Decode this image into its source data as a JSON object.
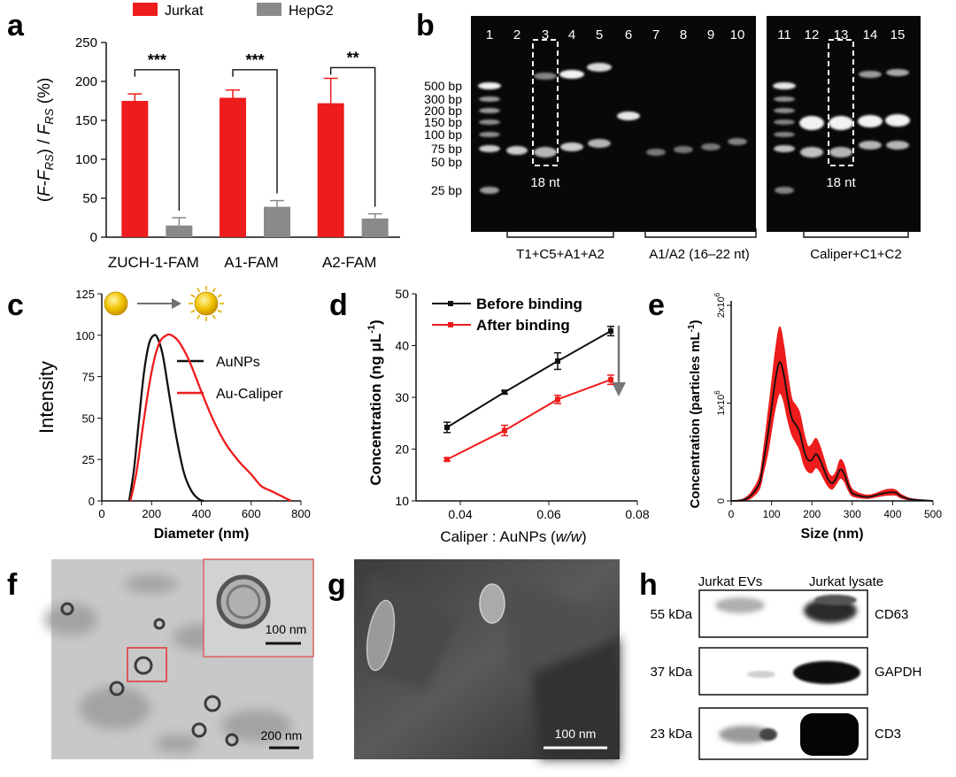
{
  "panels": {
    "a": "a",
    "b": "b",
    "c": "c",
    "d": "d",
    "e": "e",
    "f": "f",
    "g": "g",
    "h": "h"
  },
  "colors": {
    "red": "#ee1c1c",
    "gray": "#8a8a8a",
    "black": "#111111"
  },
  "chart_data": [
    {
      "id": "a",
      "type": "bar",
      "title": "",
      "ylabel_parts": [
        "(",
        "F",
        "-",
        "F",
        "RS",
        ") / ",
        "F",
        "RS",
        " (%)"
      ],
      "ylim": [
        0,
        250
      ],
      "yticks": [
        0,
        50,
        100,
        150,
        200,
        250
      ],
      "categories": [
        "ZUCH-1-FAM",
        "A1-FAM",
        "A2-FAM"
      ],
      "series": [
        {
          "name": "Jurkat",
          "color": "#ee1c1c",
          "values": [
            175,
            179,
            172
          ],
          "errors": [
            9,
            10,
            32
          ]
        },
        {
          "name": "HepG2",
          "color": "#8a8a8a",
          "values": [
            15,
            39,
            24
          ],
          "errors": [
            10,
            8,
            6
          ]
        }
      ],
      "significance": [
        "***",
        "***",
        "**"
      ]
    },
    {
      "id": "c",
      "type": "line",
      "xlabel": "Diameter (nm)",
      "ylabel": "Intensity",
      "xlim": [
        0,
        800
      ],
      "ylim": [
        0,
        125
      ],
      "xticks": [
        0,
        200,
        400,
        600,
        800
      ],
      "yticks": [
        0,
        25,
        50,
        75,
        100,
        125
      ],
      "series": [
        {
          "name": "AuNPs",
          "color": "#111111",
          "x": [
            110,
            130,
            150,
            170,
            190,
            210,
            225,
            245,
            270,
            300,
            330,
            360,
            390,
            410
          ],
          "y": [
            0,
            20,
            50,
            78,
            95,
            100,
            98,
            88,
            65,
            38,
            17,
            6,
            1,
            0
          ]
        },
        {
          "name": "Au-Caliper",
          "color": "#ee1c1c",
          "x": [
            115,
            140,
            170,
            200,
            230,
            260,
            280,
            310,
            350,
            400,
            450,
            500,
            550,
            600,
            640,
            680,
            720,
            760
          ],
          "y": [
            0,
            18,
            50,
            78,
            95,
            100,
            100,
            96,
            85,
            66,
            48,
            34,
            24,
            16,
            9,
            6,
            3,
            0
          ]
        }
      ]
    },
    {
      "id": "d",
      "type": "line",
      "xlabel_parts": [
        "Caliper : AuNPs (",
        "w/w",
        ")"
      ],
      "ylabel_parts": [
        "Concentration (ng ",
        "μL",
        "-1",
        ")"
      ],
      "xlim": [
        0.03,
        0.08
      ],
      "ylim": [
        10,
        50
      ],
      "xticks": [
        0.04,
        0.06,
        0.08
      ],
      "xtick_labels": [
        "0.04",
        "0.06",
        "0.08"
      ],
      "yticks": [
        10,
        20,
        30,
        40,
        50
      ],
      "x": [
        0.037,
        0.05,
        0.062,
        0.074
      ],
      "series": [
        {
          "name": "Before binding",
          "color": "#111111",
          "y": [
            24.2,
            31,
            37,
            42.8
          ],
          "errors": [
            1,
            0.3,
            1.6,
            0.9
          ]
        },
        {
          "name": "After binding",
          "color": "#ee1c1c",
          "y": [
            18,
            23.6,
            29.6,
            33.4
          ],
          "errors": [
            0.3,
            1,
            0.8,
            0.9
          ]
        }
      ]
    },
    {
      "id": "e",
      "type": "area",
      "xlabel": "Size (nm)",
      "ylabel_parts": [
        "Concentration (particles mL",
        "-1",
        ")"
      ],
      "xlim": [
        0,
        500
      ],
      "ylim": [
        0,
        2000000
      ],
      "xticks": [
        0,
        100,
        200,
        300,
        400,
        500
      ],
      "ytick_labels": [
        {
          "value": 0,
          "label": "0",
          "exp": ""
        },
        {
          "value": 1000000,
          "label": "1x10",
          "exp": "6"
        },
        {
          "value": 2000000,
          "label": "2x10",
          "exp": "6"
        }
      ],
      "x": [
        0,
        30,
        50,
        70,
        80,
        90,
        100,
        110,
        120,
        130,
        140,
        150,
        160,
        170,
        180,
        190,
        200,
        210,
        220,
        230,
        240,
        250,
        260,
        270,
        280,
        290,
        300,
        320,
        340,
        360,
        380,
        400,
        410,
        420,
        440,
        460,
        480,
        500
      ],
      "mean": [
        0,
        10000,
        60000,
        180000,
        400000,
        650000,
        950000,
        1250000,
        1420000,
        1300000,
        1050000,
        850000,
        780000,
        700000,
        520000,
        420000,
        420000,
        480000,
        420000,
        320000,
        220000,
        180000,
        230000,
        320000,
        280000,
        160000,
        80000,
        50000,
        40000,
        60000,
        80000,
        90000,
        80000,
        50000,
        20000,
        10000,
        5000,
        0
      ],
      "upper": [
        0,
        20000,
        90000,
        250000,
        520000,
        850000,
        1200000,
        1550000,
        1780000,
        1600000,
        1300000,
        1050000,
        980000,
        900000,
        700000,
        560000,
        580000,
        640000,
        560000,
        430000,
        300000,
        250000,
        300000,
        420000,
        370000,
        220000,
        120000,
        75000,
        60000,
        80000,
        110000,
        120000,
        105000,
        70000,
        30000,
        15000,
        8000,
        0
      ],
      "lower": [
        0,
        0,
        30000,
        120000,
        290000,
        470000,
        720000,
        960000,
        1100000,
        1020000,
        830000,
        680000,
        600000,
        520000,
        370000,
        300000,
        290000,
        340000,
        300000,
        220000,
        150000,
        120000,
        170000,
        230000,
        200000,
        110000,
        50000,
        30000,
        25000,
        40000,
        55000,
        60000,
        55000,
        30000,
        10000,
        5000,
        2000,
        0
      ]
    }
  ],
  "panel_c": {
    "legend": [
      "AuNPs",
      "Au-Caliper"
    ]
  },
  "panel_b": {
    "lanes": [
      "1",
      "2",
      "3",
      "4",
      "5",
      "6",
      "7",
      "8",
      "9",
      "10",
      "11",
      "12",
      "13",
      "14",
      "15"
    ],
    "markers": [
      "500 bp",
      "300 bp",
      "200 bp",
      "150 bp",
      "100 bp",
      "75 bp",
      "50 bp",
      "25 bp"
    ],
    "box_label_1": "18 nt",
    "box_label_2": "18 nt",
    "groups": [
      "T1+C5+A1+A2",
      "A1/A2 (16–22 nt)",
      "Caliper+C1+C2"
    ]
  },
  "panel_f": {
    "inset_scale": "100 nm",
    "scale": "200 nm"
  },
  "panel_g": {
    "scale": "100 nm"
  },
  "panel_h": {
    "headers": [
      "Jurkat EVs",
      "Jurkat lysate"
    ],
    "rows": [
      {
        "kda": "55 kDa",
        "marker": "CD63"
      },
      {
        "kda": "37 kDa",
        "marker": "GAPDH"
      },
      {
        "kda": "23 kDa",
        "marker": "CD3"
      }
    ]
  }
}
